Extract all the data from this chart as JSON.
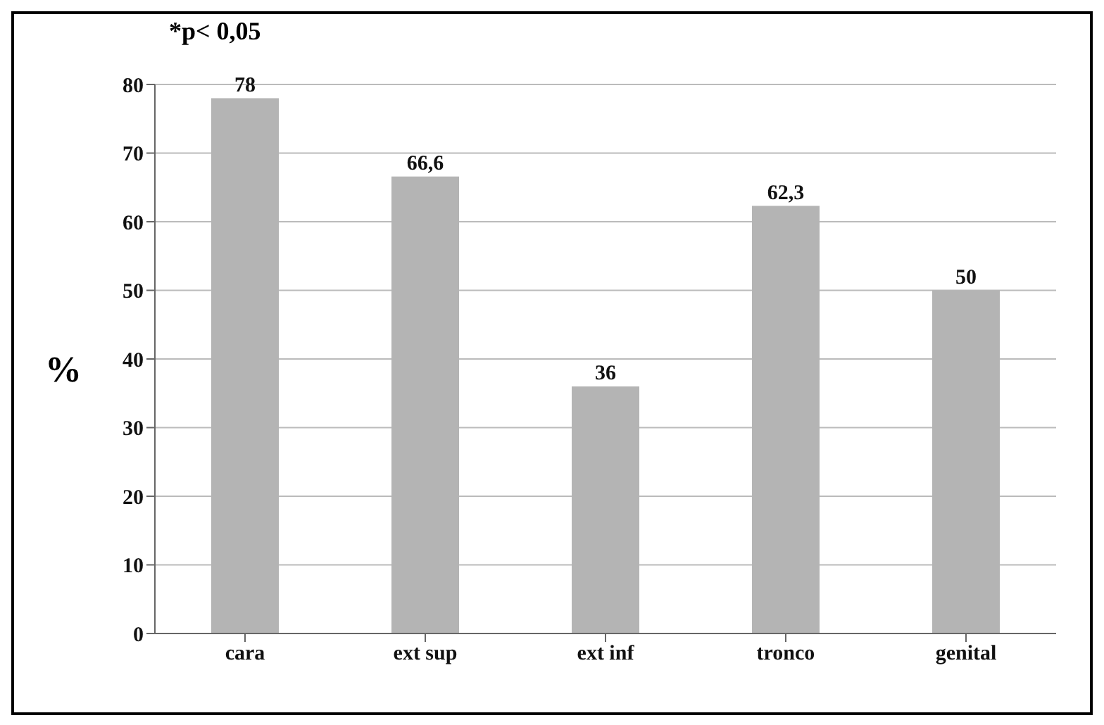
{
  "chart_data": {
    "type": "bar",
    "ylabel": "%",
    "annotations": [
      "*p< 0,05"
    ],
    "categories": [
      "cara",
      "ext sup",
      "ext inf",
      "tronco",
      "genital"
    ],
    "values": [
      78,
      66.6,
      36,
      62.3,
      50
    ],
    "value_labels": [
      "78",
      "66,6",
      "36",
      "62,3",
      "50"
    ],
    "color": "#b4b4b4",
    "ylim": [
      0,
      80
    ],
    "yticks": [
      0,
      10,
      20,
      30,
      40,
      50,
      60,
      70,
      80
    ],
    "grid": "y"
  }
}
